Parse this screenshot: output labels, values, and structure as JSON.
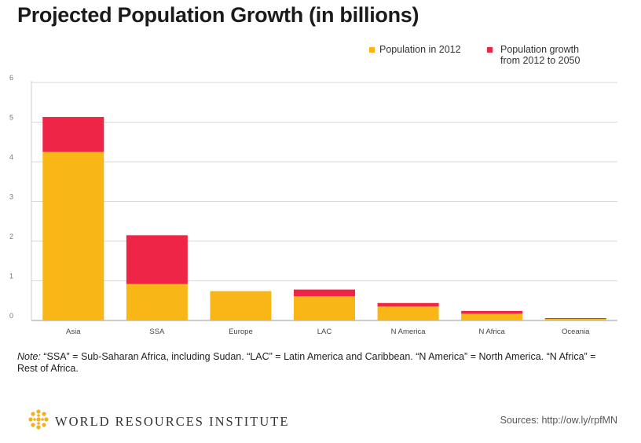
{
  "title": "Projected Population Growth (in billions)",
  "legend": [
    {
      "label": "Population in 2012",
      "color": "#F9B717"
    },
    {
      "label": "Population growth\nfrom 2012 to 2050",
      "color": "#EE2547"
    }
  ],
  "chart_data": {
    "type": "bar",
    "stacked": true,
    "categories": [
      "Asia",
      "SSA",
      "Europe",
      "LAC",
      "N America",
      "N Africa",
      "Oceania"
    ],
    "series": [
      {
        "name": "Population in 2012",
        "color": "#F9B717",
        "values": [
          4.25,
          0.92,
          0.74,
          0.61,
          0.35,
          0.17,
          0.04
        ]
      },
      {
        "name": "Population growth from 2012 to 2050",
        "color": "#EE2547",
        "values": [
          0.88,
          1.23,
          0.0,
          0.17,
          0.09,
          0.07,
          0.02
        ]
      }
    ],
    "yticks": [
      "0",
      "1",
      "2",
      "3",
      "4",
      "5",
      "6"
    ],
    "ylim": [
      0,
      6
    ],
    "grid": true,
    "legend_position": "top-right"
  },
  "note": {
    "label": "Note:",
    "text": " “SSA” = Sub-Saharan Africa, including Sudan. “LAC” = Latin America and Caribbean. “N America” = North America. “N Africa” = Rest of Africa."
  },
  "footer": {
    "organization": "WORLD RESOURCES INSTITUTE",
    "source": "Sources: http://ow.ly/rpfMN",
    "logo_icon": "wri-logo-icon"
  }
}
